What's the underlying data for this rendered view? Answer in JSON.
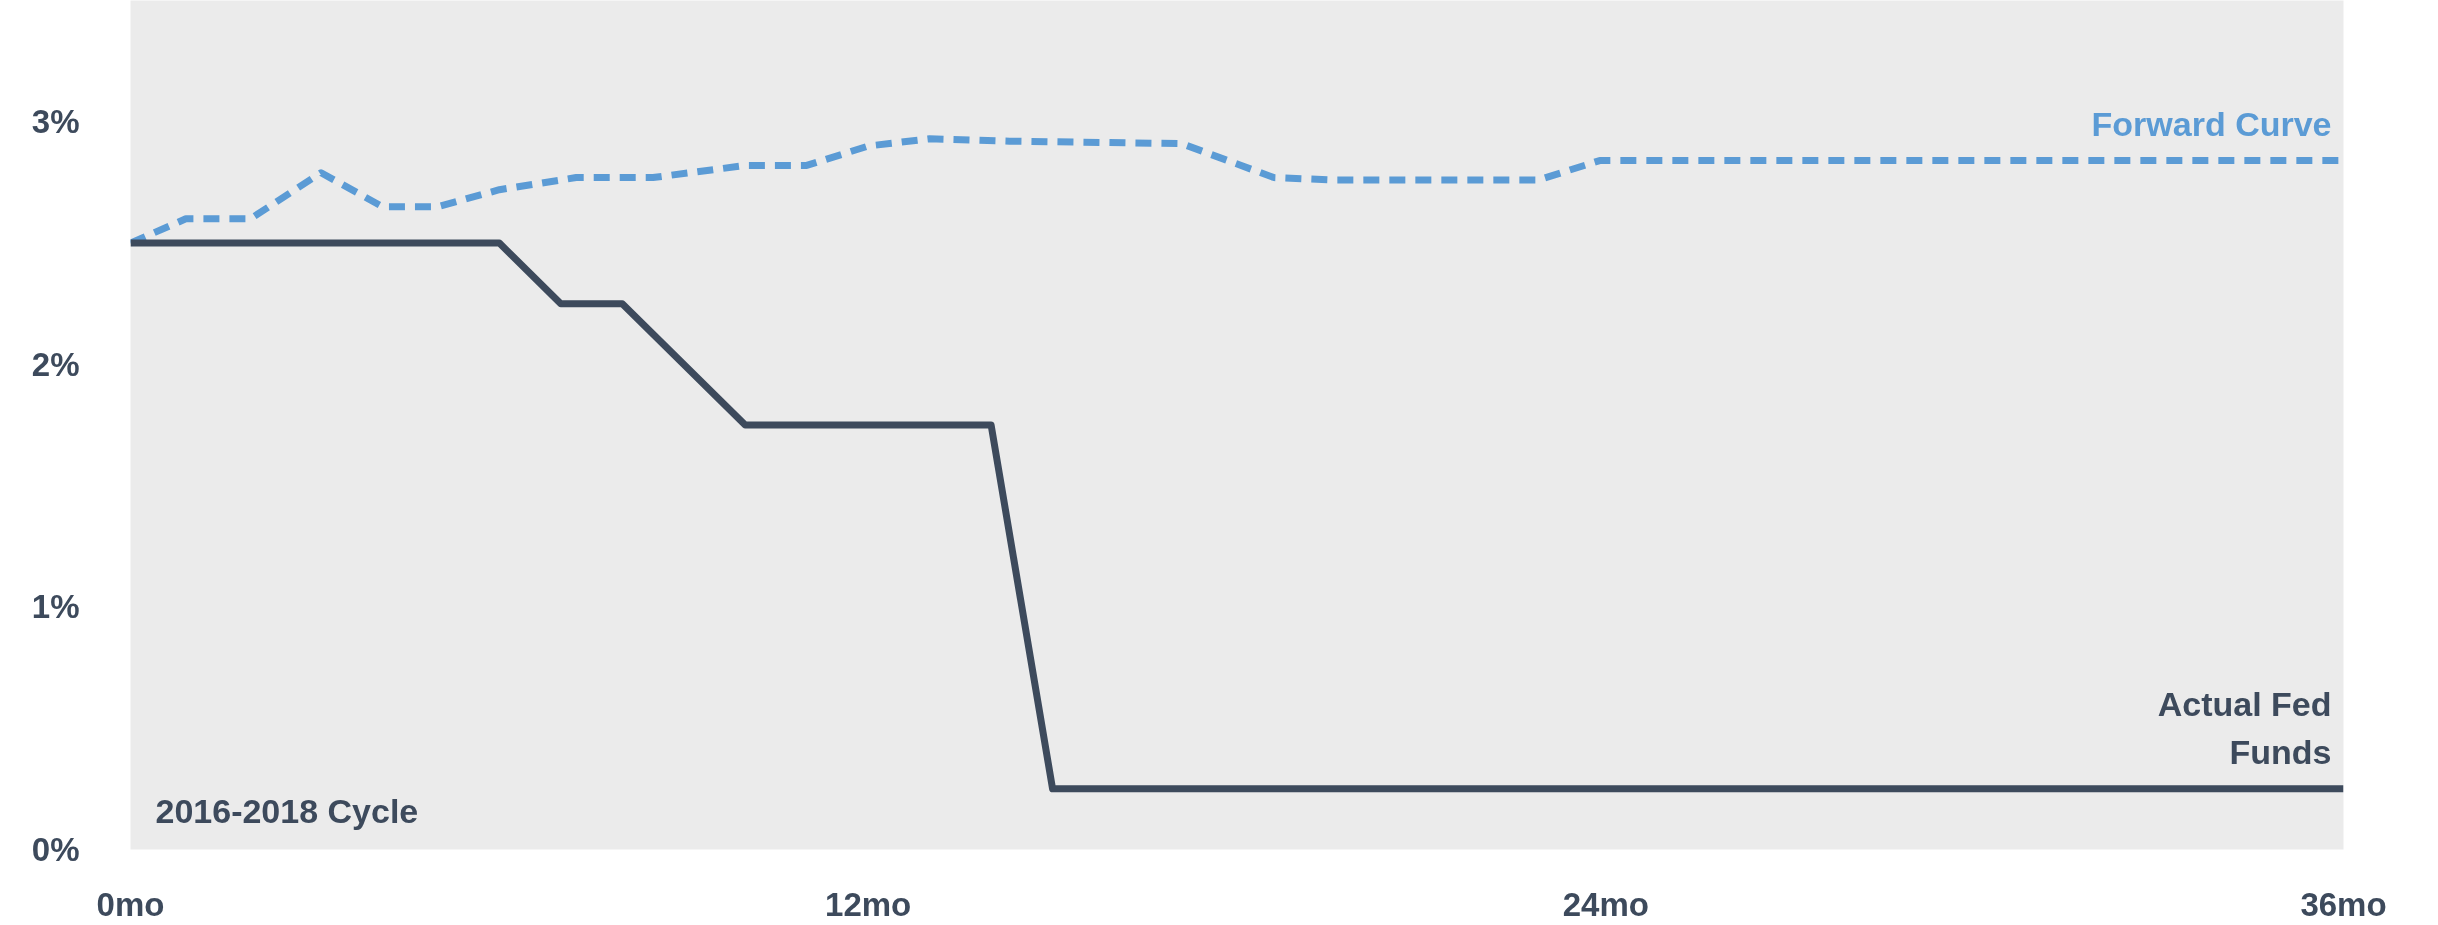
{
  "chart_data": {
    "type": "line",
    "xlim": [
      0,
      36
    ],
    "ylim": [
      0,
      3.5
    ],
    "xticks": [
      {
        "value": 0,
        "label": "0mo"
      },
      {
        "value": 12,
        "label": "12mo"
      },
      {
        "value": 24,
        "label": "24mo"
      },
      {
        "value": 36,
        "label": "36mo"
      }
    ],
    "yticks": [
      {
        "value": 0,
        "label": "0%"
      },
      {
        "value": 1,
        "label": "1%"
      },
      {
        "value": 2,
        "label": "2%"
      },
      {
        "value": 3,
        "label": "3%"
      }
    ],
    "grid": false,
    "annotations": [
      "2016-2018 Cycle"
    ],
    "series": [
      {
        "name": "Forward Curve",
        "color": "#5b9bd5",
        "line_style": "dashed",
        "x": [
          0,
          0.9,
          1.95,
          3.1,
          4.1,
          5,
          6,
          7.25,
          8.5,
          10,
          11,
          12,
          13,
          14.3,
          17.1,
          18.6,
          19.6,
          22.9,
          23.9,
          36
        ],
        "values": [
          2.5,
          2.6,
          2.6,
          2.79,
          2.65,
          2.65,
          2.72,
          2.77,
          2.77,
          2.82,
          2.82,
          2.9,
          2.93,
          2.92,
          2.91,
          2.77,
          2.76,
          2.76,
          2.84,
          2.84
        ]
      },
      {
        "name": "Actual Fed\nFunds",
        "color": "#3d4a5c",
        "line_style": "solid",
        "x": [
          0,
          6,
          7,
          8,
          10,
          14,
          15,
          36
        ],
        "values": [
          2.5,
          2.5,
          2.25,
          2.25,
          1.75,
          1.75,
          0.25,
          0.25
        ]
      }
    ]
  }
}
